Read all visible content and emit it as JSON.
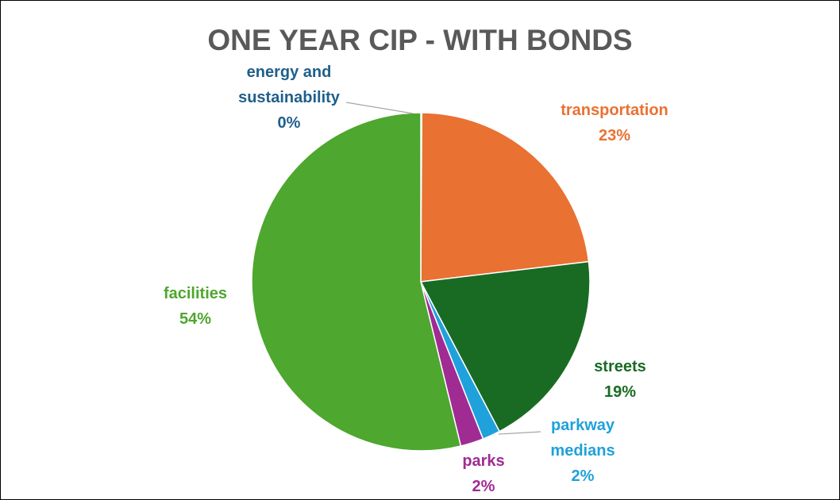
{
  "chart_data": {
    "type": "pie",
    "title": "ONE YEAR CIP - WITH BONDS",
    "slices": [
      {
        "label": "energy and sustainability",
        "label_lines": [
          "energy and",
          "sustainability"
        ],
        "pct_label": "0%",
        "value": 0.1,
        "color": "#1f5f8b"
      },
      {
        "label": "transportation",
        "label_lines": [
          "transportation"
        ],
        "pct_label": "23%",
        "value": 23,
        "color": "#e97132"
      },
      {
        "label": "streets",
        "label_lines": [
          "streets"
        ],
        "pct_label": "19%",
        "value": 19.2,
        "color": "#196b24"
      },
      {
        "label": "parkway medians",
        "label_lines": [
          "parkway",
          "medians"
        ],
        "pct_label": "2%",
        "value": 1.7,
        "color": "#1fa1db"
      },
      {
        "label": "parks",
        "label_lines": [
          "parks"
        ],
        "pct_label": "2%",
        "value": 2.2,
        "color": "#a02b93"
      },
      {
        "label": "facilities",
        "label_lines": [
          "facilities"
        ],
        "pct_label": "54%",
        "value": 53.8,
        "color": "#4ea72e"
      }
    ],
    "legend": "none"
  }
}
